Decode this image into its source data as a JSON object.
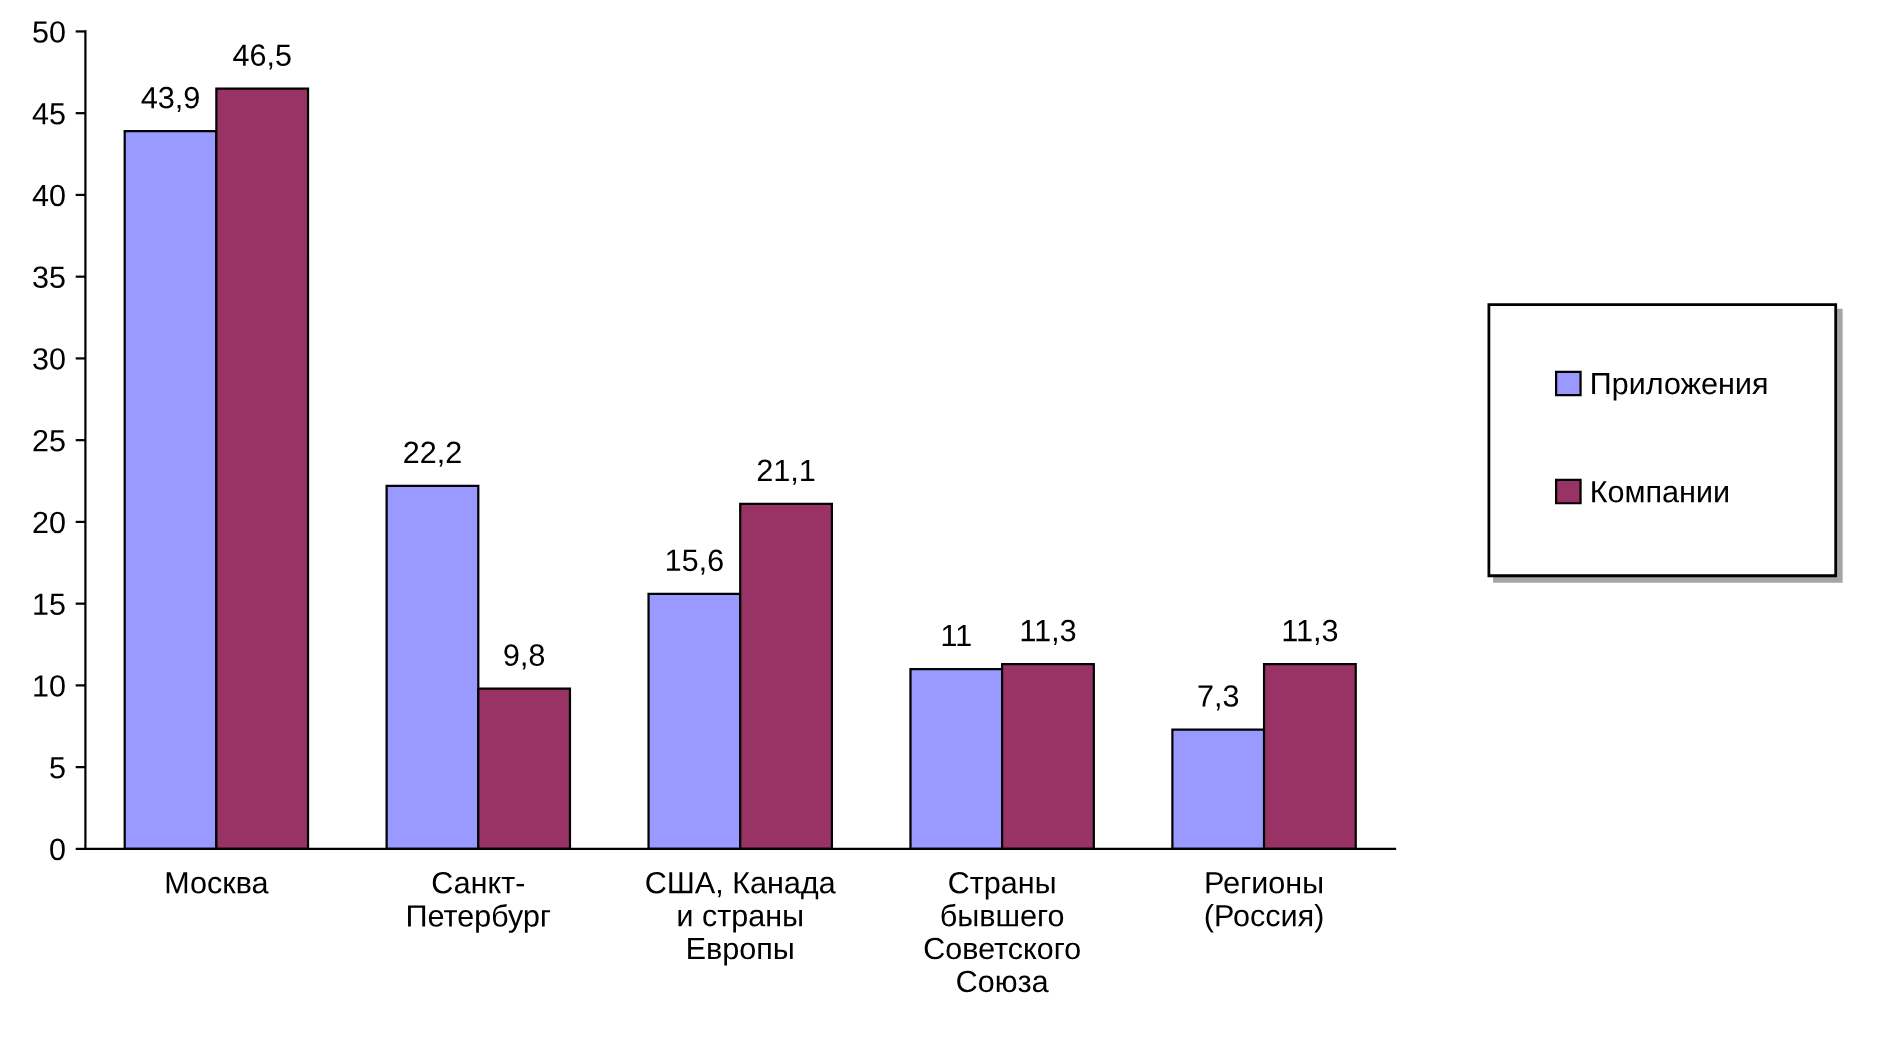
{
  "chart_data": {
    "type": "bar",
    "categories": [
      "Москва",
      "Санкт-\nПетербург",
      "США, Канада\nи страны\nЕвропы",
      "Страны\nбывшего\nСоветского\nСоюза",
      "Регионы\n(Россия)"
    ],
    "series": [
      {
        "name": "Приложения",
        "color": "#9999ff",
        "values": [
          43.9,
          22.2,
          15.6,
          11,
          7.3
        ],
        "value_labels": [
          "43,9",
          "22,2",
          "15,6",
          "11",
          "7,3"
        ]
      },
      {
        "name": "Компании",
        "color": "#993366",
        "values": [
          46.5,
          9.8,
          21.1,
          11.3,
          11.3
        ],
        "value_labels": [
          "46,5",
          "9,8",
          "21,1",
          "11,3",
          "11,3"
        ]
      }
    ],
    "ylim": [
      0,
      50
    ],
    "yticks": [
      0,
      5,
      10,
      15,
      20,
      25,
      30,
      35,
      40,
      45,
      50
    ],
    "grid": false,
    "legend": "right"
  }
}
